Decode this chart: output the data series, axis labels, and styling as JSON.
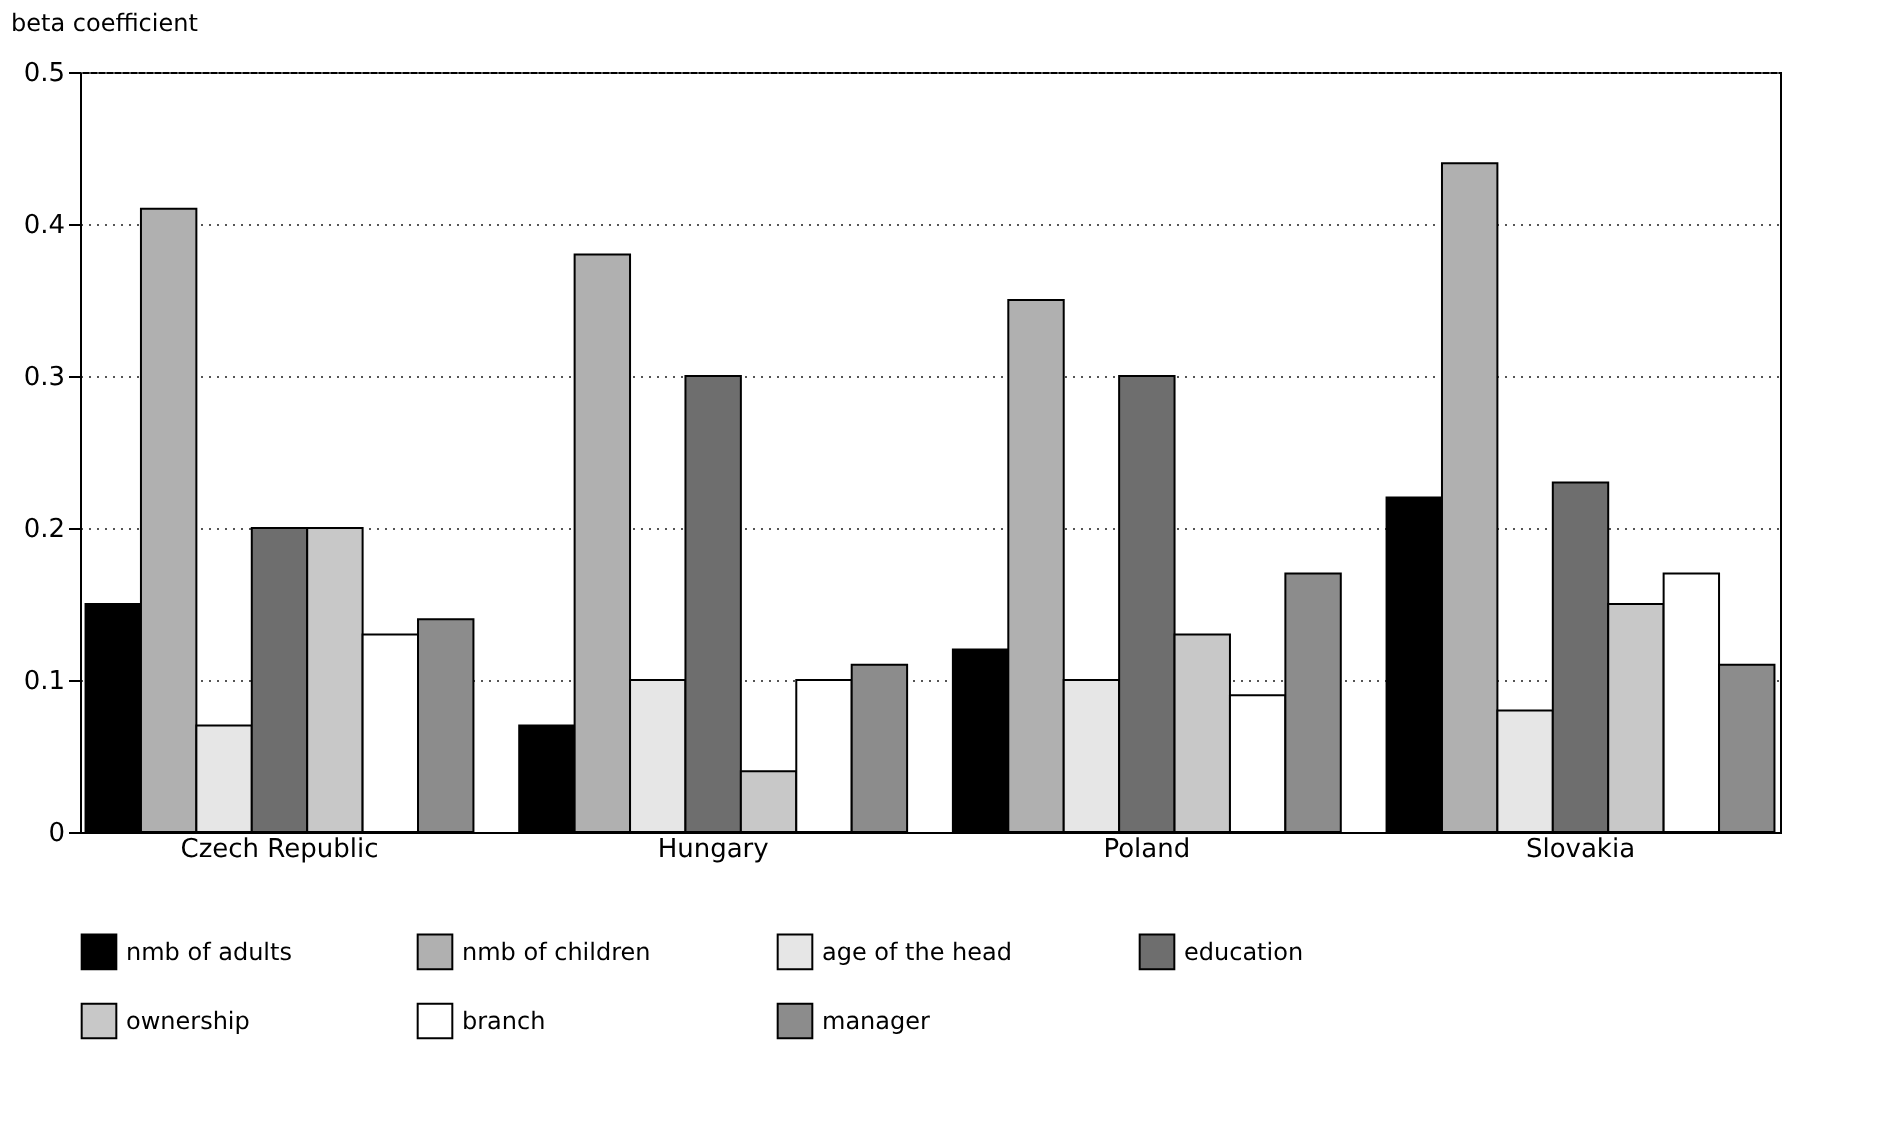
{
  "chart_data": {
    "type": "bar",
    "ylabel": "beta coefficient",
    "categories": [
      "Czech Republic",
      "Hungary",
      "Poland",
      "Slovakia"
    ],
    "series": [
      {
        "name": "nmb of adults",
        "color": "#000000",
        "values": [
          0.15,
          0.07,
          0.12,
          0.22
        ]
      },
      {
        "name": "nmb of children",
        "color": "#b0b0b0",
        "values": [
          0.41,
          0.38,
          0.35,
          0.44
        ]
      },
      {
        "name": "age of the head",
        "color": "#e6e6e6",
        "values": [
          0.07,
          0.1,
          0.1,
          0.08
        ]
      },
      {
        "name": "education",
        "color": "#6e6e6e",
        "values": [
          0.2,
          0.3,
          0.3,
          0.23
        ]
      },
      {
        "name": "ownership",
        "color": "#c8c8c8",
        "values": [
          0.2,
          0.04,
          0.13,
          0.15
        ]
      },
      {
        "name": "branch",
        "color": "#ffffff",
        "values": [
          0.13,
          0.1,
          0.09,
          0.17
        ]
      },
      {
        "name": "manager",
        "color": "#8c8c8c",
        "values": [
          0.14,
          0.11,
          0.17,
          0.11
        ]
      }
    ],
    "ylim": [
      0,
      0.5
    ],
    "yticks": [
      {
        "value": 0,
        "label": "0"
      },
      0.1,
      0.2,
      0.3,
      0.4,
      0.5
    ],
    "grid": "y",
    "legend": "bottom"
  }
}
